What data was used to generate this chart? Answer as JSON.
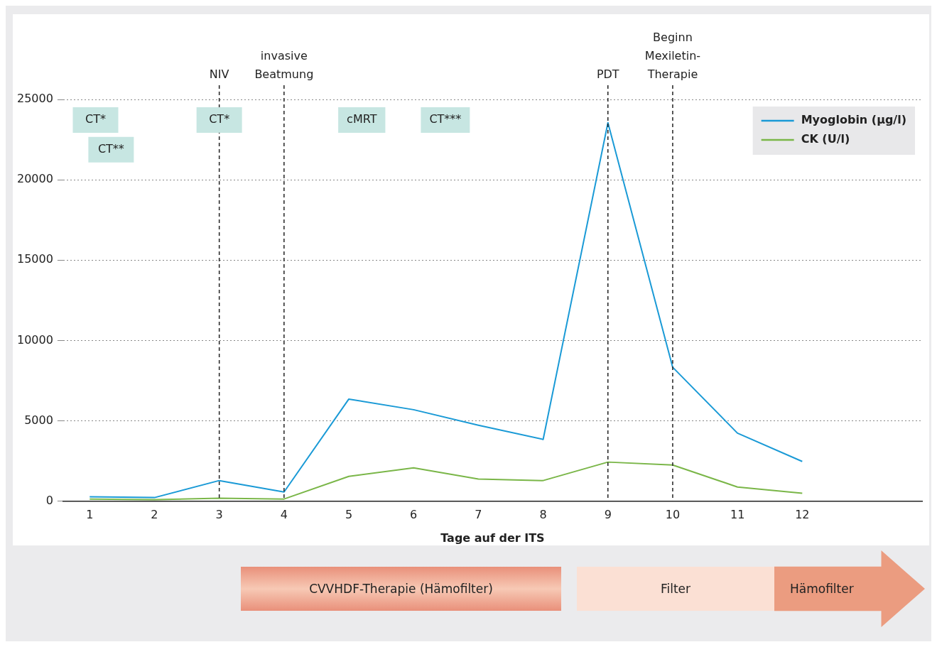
{
  "chart_data": {
    "type": "line",
    "xlabel": "Tage auf der ITS",
    "x": [
      1,
      2,
      3,
      4,
      5,
      6,
      7,
      8,
      9,
      10,
      11,
      12
    ],
    "xlim": [
      0.59,
      13.85
    ],
    "xticks": [
      1,
      2,
      3,
      4,
      5,
      6,
      7,
      8,
      9,
      10,
      11,
      12
    ],
    "ylim": [
      0,
      25000
    ],
    "yticks": [
      0,
      5000,
      10000,
      15000,
      20000,
      25000
    ],
    "grid": "y",
    "legend": "top right",
    "marker": "none",
    "line_style": "solid",
    "series": [
      {
        "name": "Myoglobin (µg/l)",
        "color": "#1a9ad6",
        "values": [
          270,
          220,
          1280,
          570,
          6350,
          5690,
          4720,
          3840,
          23550,
          8330,
          4230,
          2470
        ]
      },
      {
        "name": "CK (U/l)",
        "color": "#7ab648",
        "values": [
          130,
          90,
          180,
          130,
          1540,
          2070,
          1370,
          1280,
          2430,
          2250,
          880,
          490
        ]
      }
    ],
    "ref_lines": [
      {
        "axis": "x",
        "value": 3,
        "label": "NIV",
        "line_style": "dashed",
        "color": "#222222"
      },
      {
        "axis": "x",
        "value": 4,
        "label": "invasive Beatmung",
        "line_style": "dashed",
        "color": "#222222"
      },
      {
        "axis": "x",
        "value": 9,
        "label": "PDT",
        "line_style": "dashed",
        "color": "#222222"
      },
      {
        "axis": "x",
        "value": 10,
        "label": "Beginn Mexiletin-Therapie",
        "line_style": "dashed",
        "color": "#222222"
      }
    ],
    "annotations": [
      "CT*",
      "CT**",
      "CT*",
      "cMRT",
      "CT***",
      "CVVHDF-Therapie (Hämofilter)",
      "Filter",
      "Hämofilter"
    ]
  }
}
